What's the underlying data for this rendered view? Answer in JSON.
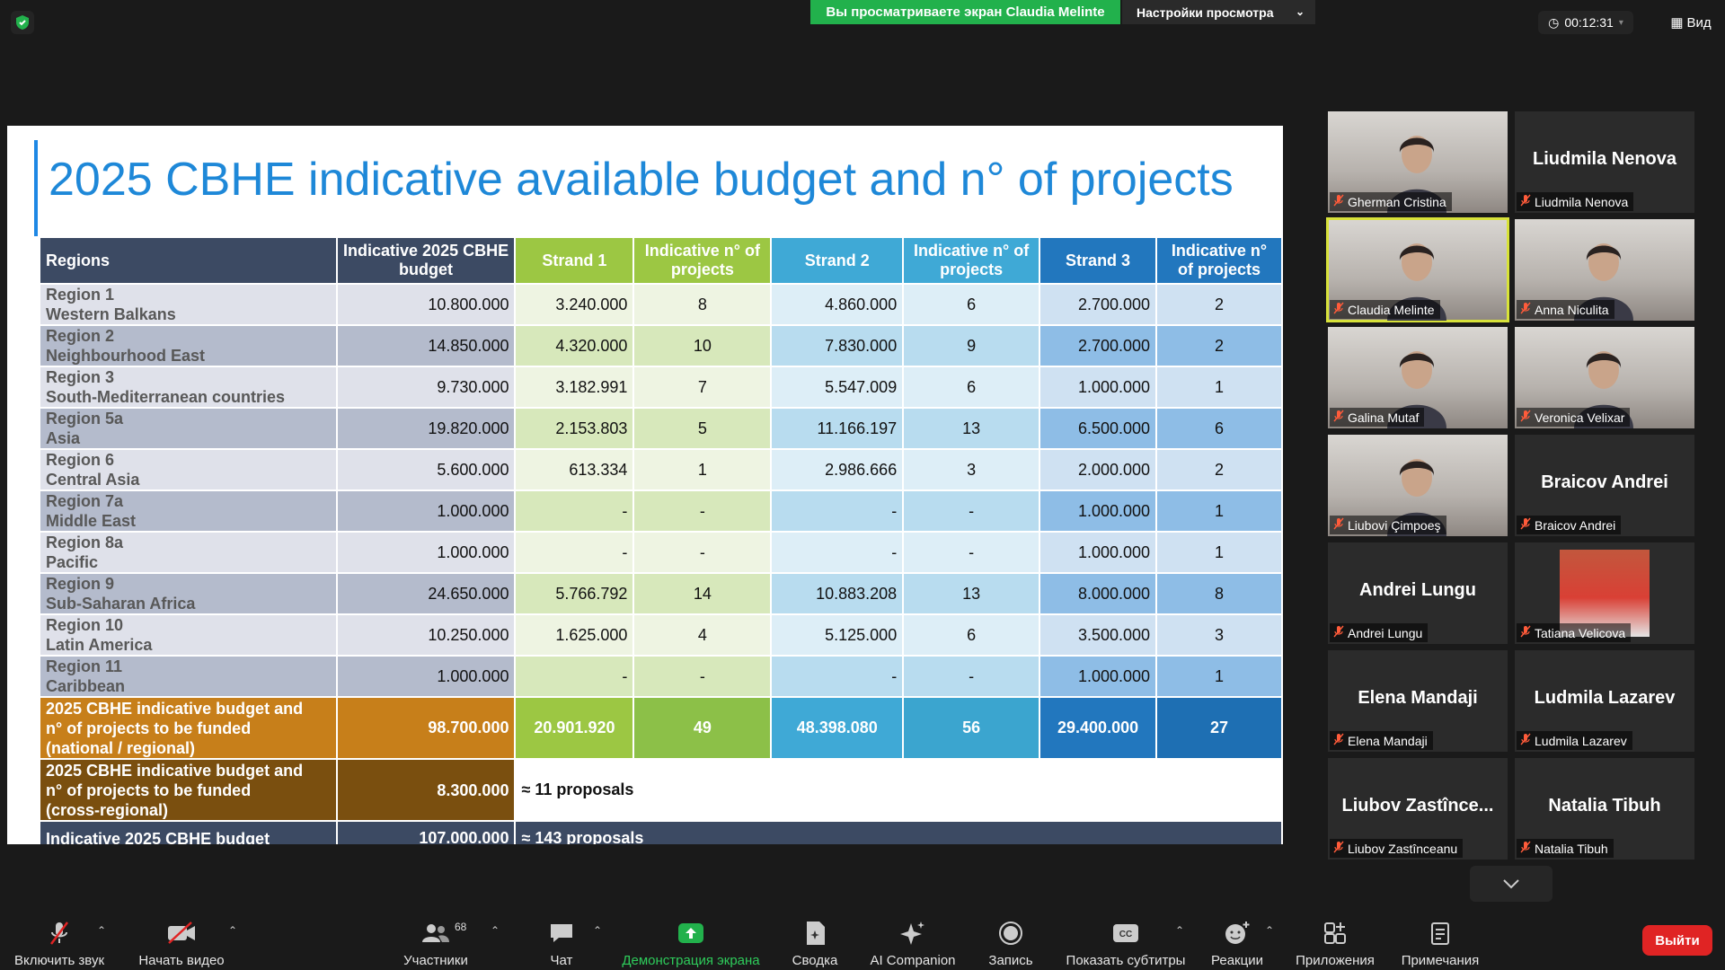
{
  "topbar": {
    "share_banner": "Вы просматриваете экран Claudia Melinte",
    "view_settings": "Настройки просмотра",
    "timer": "00:12:31",
    "view": "Вид"
  },
  "slide": {
    "title": "2025 CBHE indicative available budget and n° of projects",
    "headers": {
      "regions": "Regions",
      "budget": "Indicative 2025 CBHE budget",
      "strand1": "Strand 1",
      "strand1_n": "Indicative n° of projects",
      "strand2": "Strand 2",
      "strand2_n": "Indicative n° of projects",
      "strand3": "Strand 3",
      "strand3_n": "Indicative n° of projects"
    },
    "rows": [
      {
        "l1": "Region 1",
        "l2": "Western Balkans",
        "budget": "10.800.000",
        "s1": "3.240.000",
        "s1n": "8",
        "s2": "4.860.000",
        "s2n": "6",
        "s3": "2.700.000",
        "s3n": "2"
      },
      {
        "l1": "Region 2",
        "l2": "Neighbourhood East",
        "budget": "14.850.000",
        "s1": "4.320.000",
        "s1n": "10",
        "s2": "7.830.000",
        "s2n": "9",
        "s3": "2.700.000",
        "s3n": "2"
      },
      {
        "l1": "Region 3",
        "l2": "South-Mediterranean countries",
        "budget": "9.730.000",
        "s1": "3.182.991",
        "s1n": "7",
        "s2": "5.547.009",
        "s2n": "6",
        "s3": "1.000.000",
        "s3n": "1"
      },
      {
        "l1": "Region 5a",
        "l2": "Asia",
        "budget": "19.820.000",
        "s1": "2.153.803",
        "s1n": "5",
        "s2": "11.166.197",
        "s2n": "13",
        "s3": "6.500.000",
        "s3n": "6"
      },
      {
        "l1": "Region 6",
        "l2": "Central Asia",
        "budget": "5.600.000",
        "s1": "613.334",
        "s1n": "1",
        "s2": "2.986.666",
        "s2n": "3",
        "s3": "2.000.000",
        "s3n": "2"
      },
      {
        "l1": "Region 7a",
        "l2": "Middle East",
        "budget": "1.000.000",
        "s1": "-",
        "s1n": "-",
        "s2": "-",
        "s2n": "-",
        "s3": "1.000.000",
        "s3n": "1"
      },
      {
        "l1": "Region 8a",
        "l2": "Pacific",
        "budget": "1.000.000",
        "s1": "-",
        "s1n": "-",
        "s2": "-",
        "s2n": "-",
        "s3": "1.000.000",
        "s3n": "1"
      },
      {
        "l1": "Region 9",
        "l2": "Sub-Saharan Africa",
        "budget": "24.650.000",
        "s1": "5.766.792",
        "s1n": "14",
        "s2": "10.883.208",
        "s2n": "13",
        "s3": "8.000.000",
        "s3n": "8"
      },
      {
        "l1": "Region 10",
        "l2": "Latin America",
        "budget": "10.250.000",
        "s1": "1.625.000",
        "s1n": "4",
        "s2": "5.125.000",
        "s2n": "6",
        "s3": "3.500.000",
        "s3n": "3"
      },
      {
        "l1": "Region 11",
        "l2": "Caribbean",
        "budget": "1.000.000",
        "s1": "-",
        "s1n": "-",
        "s2": "-",
        "s2n": "-",
        "s3": "1.000.000",
        "s3n": "1"
      }
    ],
    "total": {
      "label_1": "2025 CBHE indicative budget and",
      "label_2": "n° of projects to be funded",
      "label_3": "(national / regional)",
      "budget": "98.700.000",
      "s1": "20.901.920",
      "s1n": "49",
      "s2": "48.398.080",
      "s2n": "56",
      "s3": "29.400.000",
      "s3n": "27"
    },
    "cross": {
      "label_1": "2025 CBHE indicative budget and",
      "label_2": "n° of projects to be funded",
      "label_3": "(cross-regional)",
      "budget": "8.300.000",
      "note": "≈ 11 proposals"
    },
    "grand": {
      "label": "Indicative 2025 CBHE budget",
      "budget": "107.000.000",
      "note": "≈ 143 proposals"
    }
  },
  "participants": [
    {
      "name": "Gherman Cristina",
      "big": "",
      "video": true
    },
    {
      "name": "Liudmila Nenova",
      "big": "Liudmila Nenova",
      "video": false
    },
    {
      "name": "Claudia Melinte",
      "big": "",
      "video": true,
      "active": true
    },
    {
      "name": "Anna Niculita",
      "big": "",
      "video": true
    },
    {
      "name": "Galina Mutaf",
      "big": "",
      "video": true
    },
    {
      "name": "Veronica Velixar",
      "big": "",
      "video": true
    },
    {
      "name": "Liubovi Çimpoeş",
      "big": "",
      "video": true
    },
    {
      "name": "Braicov Andrei",
      "big": "Braicov Andrei",
      "video": false
    },
    {
      "name": "Andrei Lungu",
      "big": "Andrei Lungu",
      "video": false
    },
    {
      "name": "Tatiana Velicova",
      "big": "",
      "video": false,
      "small_photo": true
    },
    {
      "name": "Elena Mandaji",
      "big": "Elena Mandaji",
      "video": false
    },
    {
      "name": "Ludmila Lazarev",
      "big": "Ludmila Lazarev",
      "video": false
    },
    {
      "name": "Liubov Zastînceanu",
      "big": "Liubov  Zastînce...",
      "video": false
    },
    {
      "name": "Natalia Tibuh",
      "big": "Natalia Tibuh",
      "video": false
    }
  ],
  "toolbar": {
    "unmute": "Включить звук",
    "start_video": "Начать видео",
    "participants": "Участники",
    "participants_count": "68",
    "chat": "Чат",
    "share": "Демонстрация экрана",
    "summary": "Сводка",
    "ai": "AI Companion",
    "record": "Запись",
    "captions": "Показать субтитры",
    "reactions": "Реакции",
    "apps": "Приложения",
    "notes": "Примечания",
    "leave": "Выйти"
  },
  "colors": {
    "share_green": "#22b14c",
    "title_blue": "#1e88d8",
    "leave_red": "#e02424",
    "active_outline": "#d8e23a"
  }
}
